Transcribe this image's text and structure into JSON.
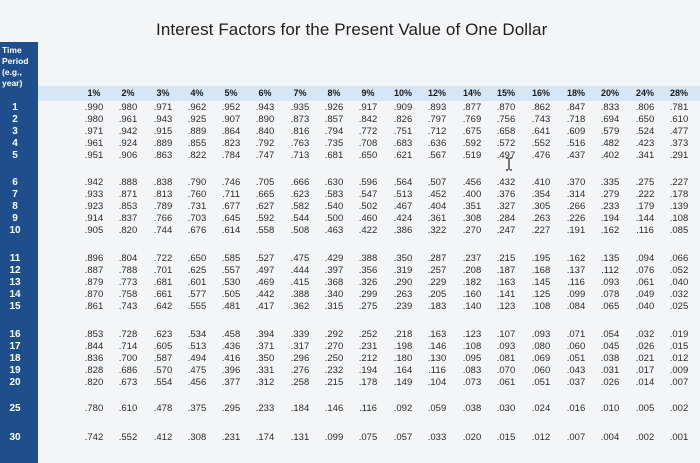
{
  "title": "Interest Factors for the Present Value of One Dollar",
  "time_period_label": "Time Period (e.g., year)",
  "rates": [
    "1%",
    "2%",
    "3%",
    "4%",
    "5%",
    "6%",
    "7%",
    "8%",
    "9%",
    "10%",
    "12%",
    "14%",
    "15%",
    "16%",
    "18%",
    "20%",
    "24%",
    "28%"
  ],
  "rows": [
    {
      "period": "1",
      "values": [
        ".990",
        ".980",
        ".971",
        ".962",
        ".952",
        ".943",
        ".935",
        ".926",
        ".917",
        ".909",
        ".893",
        ".877",
        ".870",
        ".862",
        ".847",
        ".833",
        ".806",
        ".781"
      ]
    },
    {
      "period": "2",
      "values": [
        ".980",
        ".961",
        ".943",
        ".925",
        ".907",
        ".890",
        ".873",
        ".857",
        ".842",
        ".826",
        ".797",
        ".769",
        ".756",
        ".743",
        ".718",
        ".694",
        ".650",
        ".610"
      ]
    },
    {
      "period": "3",
      "values": [
        ".971",
        ".942",
        ".915",
        ".889",
        ".864",
        ".840",
        ".816",
        ".794",
        ".772",
        ".751",
        ".712",
        ".675",
        ".658",
        ".641",
        ".609",
        ".579",
        ".524",
        ".477"
      ]
    },
    {
      "period": "4",
      "values": [
        ".961",
        ".924",
        ".889",
        ".855",
        ".823",
        ".792",
        ".763",
        ".735",
        ".708",
        ".683",
        ".636",
        ".592",
        ".572",
        ".552",
        ".516",
        ".482",
        ".423",
        ".373"
      ]
    },
    {
      "period": "5",
      "values": [
        ".951",
        ".906",
        ".863",
        ".822",
        ".784",
        ".747",
        ".713",
        ".681",
        ".650",
        ".621",
        ".567",
        ".519",
        ".497",
        ".476",
        ".437",
        ".402",
        ".341",
        ".291"
      ]
    },
    {
      "period": "6",
      "values": [
        ".942",
        ".888",
        ".838",
        ".790",
        ".746",
        ".705",
        ".666",
        ".630",
        ".596",
        ".564",
        ".507",
        ".456",
        ".432",
        ".410",
        ".370",
        ".335",
        ".275",
        ".227"
      ]
    },
    {
      "period": "7",
      "values": [
        ".933",
        ".871",
        ".813",
        ".760",
        ".711",
        ".665",
        ".623",
        ".583",
        ".547",
        ".513",
        ".452",
        ".400",
        ".376",
        ".354",
        ".314",
        ".279",
        ".222",
        ".178"
      ]
    },
    {
      "period": "8",
      "values": [
        ".923",
        ".853",
        ".789",
        ".731",
        ".677",
        ".627",
        ".582",
        ".540",
        ".502",
        ".467",
        ".404",
        ".351",
        ".327",
        ".305",
        ".266",
        ".233",
        ".179",
        ".139"
      ]
    },
    {
      "period": "9",
      "values": [
        ".914",
        ".837",
        ".766",
        ".703",
        ".645",
        ".592",
        ".544",
        ".500",
        ".460",
        ".424",
        ".361",
        ".308",
        ".284",
        ".263",
        ".226",
        ".194",
        ".144",
        ".108"
      ]
    },
    {
      "period": "10",
      "values": [
        ".905",
        ".820",
        ".744",
        ".676",
        ".614",
        ".558",
        ".508",
        ".463",
        ".422",
        ".386",
        ".322",
        ".270",
        ".247",
        ".227",
        ".191",
        ".162",
        ".116",
        ".085"
      ]
    },
    {
      "period": "11",
      "values": [
        ".896",
        ".804",
        ".722",
        ".650",
        ".585",
        ".527",
        ".475",
        ".429",
        ".388",
        ".350",
        ".287",
        ".237",
        ".215",
        ".195",
        ".162",
        ".135",
        ".094",
        ".066"
      ]
    },
    {
      "period": "12",
      "values": [
        ".887",
        ".788",
        ".701",
        ".625",
        ".557",
        ".497",
        ".444",
        ".397",
        ".356",
        ".319",
        ".257",
        ".208",
        ".187",
        ".168",
        ".137",
        ".112",
        ".076",
        ".052"
      ]
    },
    {
      "period": "13",
      "values": [
        ".879",
        ".773",
        ".681",
        ".601",
        ".530",
        ".469",
        ".415",
        ".368",
        ".326",
        ".290",
        ".229",
        ".182",
        ".163",
        ".145",
        ".116",
        ".093",
        ".061",
        ".040"
      ]
    },
    {
      "period": "14",
      "values": [
        ".870",
        ".758",
        ".661",
        ".577",
        ".505",
        ".442",
        ".388",
        ".340",
        ".299",
        ".263",
        ".205",
        ".160",
        ".141",
        ".125",
        ".099",
        ".078",
        ".049",
        ".032"
      ]
    },
    {
      "period": "15",
      "values": [
        ".861",
        ".743",
        ".642",
        ".555",
        ".481",
        ".417",
        ".362",
        ".315",
        ".275",
        ".239",
        ".183",
        ".140",
        ".123",
        ".108",
        ".084",
        ".065",
        ".040",
        ".025"
      ]
    },
    {
      "period": "16",
      "values": [
        ".853",
        ".728",
        ".623",
        ".534",
        ".458",
        ".394",
        ".339",
        ".292",
        ".252",
        ".218",
        ".163",
        ".123",
        ".107",
        ".093",
        ".071",
        ".054",
        ".032",
        ".019"
      ]
    },
    {
      "period": "17",
      "values": [
        ".844",
        ".714",
        ".605",
        ".513",
        ".436",
        ".371",
        ".317",
        ".270",
        ".231",
        ".198",
        ".146",
        ".108",
        ".093",
        ".080",
        ".060",
        ".045",
        ".026",
        ".015"
      ]
    },
    {
      "period": "18",
      "values": [
        ".836",
        ".700",
        ".587",
        ".494",
        ".416",
        ".350",
        ".296",
        ".250",
        ".212",
        ".180",
        ".130",
        ".095",
        ".081",
        ".069",
        ".051",
        ".038",
        ".021",
        ".012"
      ]
    },
    {
      "period": "19",
      "values": [
        ".828",
        ".686",
        ".570",
        ".475",
        ".396",
        ".331",
        ".276",
        ".232",
        ".194",
        ".164",
        ".116",
        ".083",
        ".070",
        ".060",
        ".043",
        ".031",
        ".017",
        ".009"
      ]
    },
    {
      "period": "20",
      "values": [
        ".820",
        ".673",
        ".554",
        ".456",
        ".377",
        ".312",
        ".258",
        ".215",
        ".178",
        ".149",
        ".104",
        ".073",
        ".061",
        ".051",
        ".037",
        ".026",
        ".014",
        ".007"
      ]
    },
    {
      "period": "25",
      "values": [
        ".780",
        ".610",
        ".478",
        ".375",
        ".295",
        ".233",
        ".184",
        ".146",
        ".116",
        ".092",
        ".059",
        ".038",
        ".030",
        ".024",
        ".016",
        ".010",
        ".005",
        ".002"
      ]
    },
    {
      "period": "30",
      "values": [
        ".742",
        ".552",
        ".412",
        ".308",
        ".231",
        ".174",
        ".131",
        ".099",
        ".075",
        ".057",
        ".033",
        ".020",
        ".015",
        ".012",
        ".007",
        ".004",
        ".002",
        ".001"
      ]
    }
  ],
  "colors": {
    "sidebar": "#1f4e8c",
    "header_band": "#d7e6f4",
    "background": "#f4f5f7"
  },
  "cursor_icon": "text-cursor-icon"
}
